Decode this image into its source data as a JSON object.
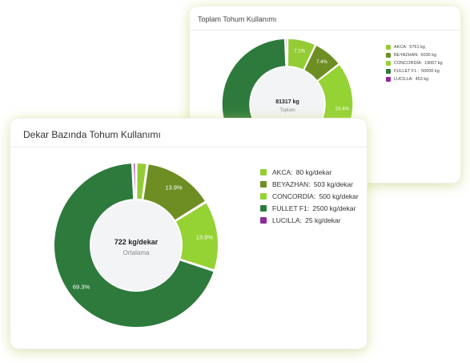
{
  "card_back": {
    "title": "Toplam Tohum Kullanımı",
    "center_value": "81317 kg",
    "center_label": "Toplam",
    "legend": [
      {
        "name": "AKCA",
        "sep": ":",
        "value": "5761 kg",
        "color": "#94cc36"
      },
      {
        "name": "BEYAZHAN",
        "sep": ":",
        "value": "6036 kg",
        "color": "#6e8e24"
      },
      {
        "name": "CONCORDİA",
        "sep": ":",
        "value": "19067 kg",
        "color": "#95d234"
      },
      {
        "name": "FULLET F1",
        "sep": " :",
        "value": "50000 kg",
        "color": "#2d7a3c"
      },
      {
        "name": "LUCILLA",
        "sep": ":",
        "value": "453 kg",
        "color": "#8e2a9c"
      }
    ]
  },
  "card_front": {
    "title": "Dekar Bazında Tohum Kullanımı",
    "center_value": "722 kg/dekar",
    "center_label": "Ortalama",
    "legend": [
      {
        "name": "AKCA",
        "sep": ":",
        "value": "80 kg/dekar",
        "color": "#94cc36"
      },
      {
        "name": "BEYAZHAN",
        "sep": ":",
        "value": "503 kg/dekar",
        "color": "#6e8e24"
      },
      {
        "name": "CONCORDİA",
        "sep": ":",
        "value": "500 kg/dekar",
        "color": "#95d234"
      },
      {
        "name": "FULLET F1",
        "sep": ":",
        "value": "2500 kg/dekar",
        "color": "#2d7a3c"
      },
      {
        "name": "LUCILLA",
        "sep": ":",
        "value": "25 kg/dekar",
        "color": "#8e2a9c"
      }
    ]
  },
  "chart_data": [
    {
      "type": "pie",
      "title": "Toplam Tohum Kullanımı",
      "categories": [
        "AKCA",
        "BEYAZHAN",
        "CONCORDİA",
        "FULLET F1",
        "LUCILLA"
      ],
      "values": [
        5761,
        6036,
        19067,
        50000,
        453
      ],
      "unit": "kg",
      "slice_labels": [
        "7.1%",
        "7.4%",
        "23.4%",
        "",
        ""
      ],
      "colors": [
        "#94cc36",
        "#6e8e24",
        "#95d234",
        "#2d7a3c",
        "#8e2a9c"
      ]
    },
    {
      "type": "pie",
      "title": "Dekar Bazında Tohum Kullanımı",
      "categories": [
        "AKCA",
        "BEYAZHAN",
        "CONCORDİA",
        "FULLET F1",
        "LUCILLA"
      ],
      "values": [
        80,
        503,
        500,
        2500,
        25
      ],
      "unit": "kg/dekar",
      "slice_labels": [
        "",
        "13.9%",
        "13.9%",
        "69.3%",
        ""
      ],
      "colors": [
        "#94cc36",
        "#6e8e24",
        "#95d234",
        "#2d7a3c",
        "#8e2a9c"
      ]
    }
  ]
}
